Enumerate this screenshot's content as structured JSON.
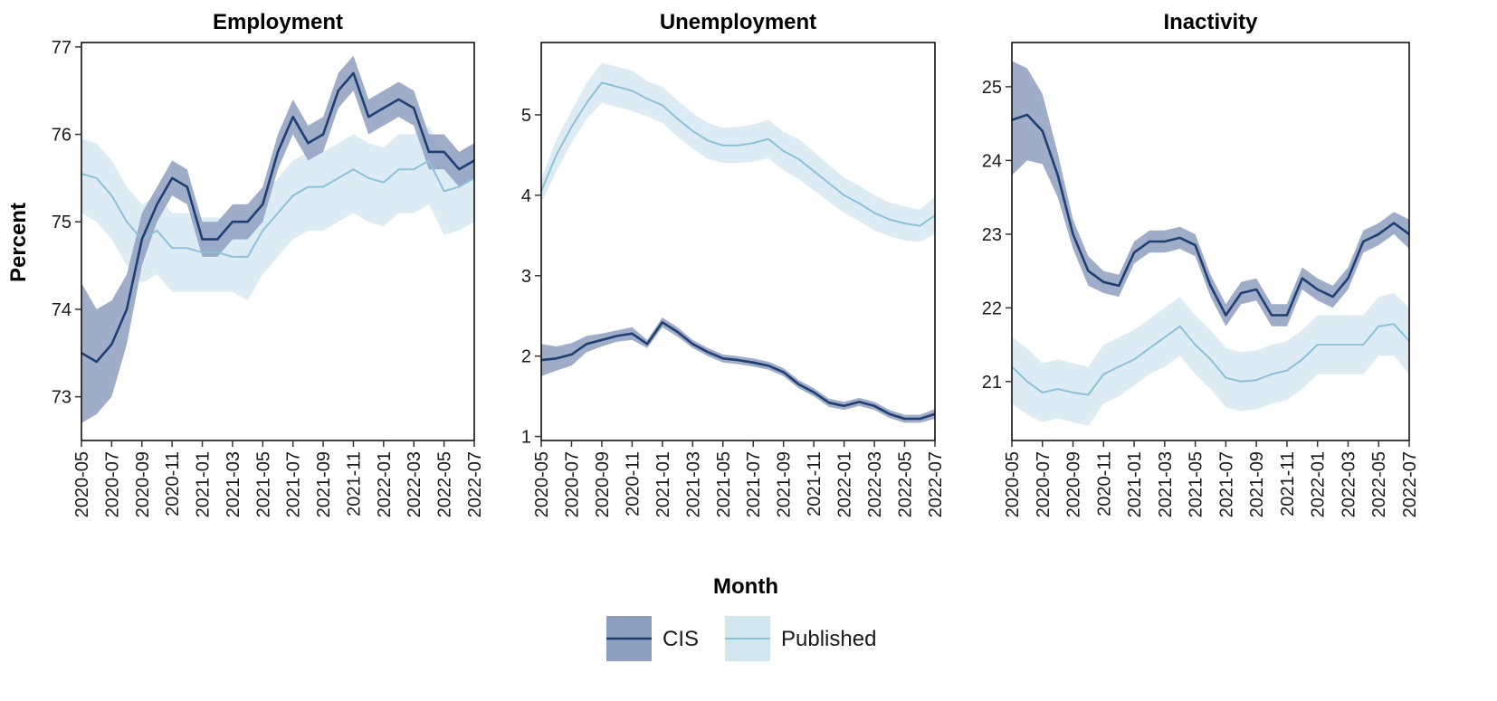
{
  "chart_data": {
    "type": "line",
    "xlabel": "Month",
    "ylabel": "Percent",
    "x": [
      "2020-05",
      "2020-06",
      "2020-07",
      "2020-08",
      "2020-09",
      "2020-10",
      "2020-11",
      "2020-12",
      "2021-01",
      "2021-02",
      "2021-03",
      "2021-04",
      "2021-05",
      "2021-06",
      "2021-07",
      "2021-08",
      "2021-09",
      "2021-10",
      "2021-11",
      "2021-12",
      "2022-01",
      "2022-02",
      "2022-03",
      "2022-04",
      "2022-05",
      "2022-06",
      "2022-07"
    ],
    "x_tick_labels": [
      "2020-05",
      "2020-07",
      "2020-09",
      "2020-11",
      "2021-01",
      "2021-03",
      "2021-05",
      "2021-07",
      "2021-09",
      "2021-11",
      "2022-01",
      "2022-03",
      "2022-05",
      "2022-07"
    ],
    "legend": {
      "placement": "bottom",
      "entries": [
        {
          "name": "CIS",
          "line_color": "#1f3f73",
          "band_color": "#8e9fbf"
        },
        {
          "name": "Published",
          "line_color": "#8dc1d6",
          "band_color": "#d2e6f0"
        }
      ]
    },
    "panels": [
      {
        "title": "Employment",
        "ylim": [
          72.5,
          77.05
        ],
        "yticks": [
          73,
          74,
          75,
          76,
          77
        ],
        "series": [
          {
            "name": "CIS",
            "values": [
              73.5,
              73.4,
              73.6,
              74.0,
              74.8,
              75.2,
              75.5,
              75.4,
              74.8,
              74.8,
              75.0,
              75.0,
              75.2,
              75.8,
              76.2,
              75.9,
              76.0,
              76.5,
              76.7,
              76.2,
              76.3,
              76.4,
              76.3,
              75.8,
              75.8,
              75.6,
              75.7
            ],
            "lower": [
              72.7,
              72.8,
              73.0,
              73.6,
              74.5,
              75.0,
              75.3,
              75.2,
              74.6,
              74.6,
              74.8,
              74.8,
              75.0,
              75.6,
              76.0,
              75.7,
              75.8,
              76.3,
              76.5,
              76.0,
              76.1,
              76.2,
              76.1,
              75.6,
              75.6,
              75.4,
              75.5
            ],
            "upper": [
              74.3,
              74.0,
              74.1,
              74.4,
              75.1,
              75.4,
              75.7,
              75.6,
              75.0,
              75.0,
              75.2,
              75.2,
              75.4,
              76.0,
              76.4,
              76.1,
              76.2,
              76.7,
              76.9,
              76.4,
              76.5,
              76.6,
              76.5,
              76.0,
              76.0,
              75.8,
              75.9
            ]
          },
          {
            "name": "Published",
            "values": [
              75.55,
              75.5,
              75.3,
              75.0,
              74.8,
              74.9,
              74.7,
              74.7,
              74.65,
              74.65,
              74.6,
              74.6,
              74.9,
              75.1,
              75.3,
              75.4,
              75.4,
              75.5,
              75.6,
              75.5,
              75.45,
              75.6,
              75.6,
              75.7,
              75.35,
              75.4,
              75.5
            ],
            "lower": [
              75.1,
              75.0,
              74.8,
              74.5,
              74.3,
              74.4,
              74.2,
              74.2,
              74.2,
              74.2,
              74.2,
              74.1,
              74.4,
              74.6,
              74.8,
              74.9,
              74.9,
              75.0,
              75.1,
              75.0,
              74.95,
              75.1,
              75.1,
              75.2,
              74.85,
              74.9,
              75.0
            ],
            "upper": [
              75.95,
              75.9,
              75.7,
              75.4,
              75.2,
              75.3,
              75.1,
              75.1,
              75.05,
              75.05,
              75.0,
              75.0,
              75.3,
              75.5,
              75.7,
              75.8,
              75.8,
              75.9,
              76.0,
              75.9,
              75.85,
              76.0,
              76.0,
              76.1,
              75.75,
              75.8,
              75.9
            ]
          }
        ]
      },
      {
        "title": "Unemployment",
        "ylim": [
          0.95,
          5.9
        ],
        "yticks": [
          1,
          2,
          3,
          4,
          5
        ],
        "series": [
          {
            "name": "CIS",
            "values": [
              1.95,
              1.97,
              2.02,
              2.15,
              2.2,
              2.25,
              2.28,
              2.15,
              2.42,
              2.3,
              2.15,
              2.05,
              1.97,
              1.95,
              1.92,
              1.88,
              1.8,
              1.65,
              1.55,
              1.42,
              1.38,
              1.43,
              1.38,
              1.28,
              1.22,
              1.22,
              1.28
            ],
            "lower": [
              1.75,
              1.82,
              1.88,
              2.05,
              2.12,
              2.18,
              2.2,
              2.1,
              2.36,
              2.24,
              2.1,
              2.0,
              1.92,
              1.9,
              1.87,
              1.83,
              1.75,
              1.6,
              1.5,
              1.37,
              1.33,
              1.38,
              1.33,
              1.23,
              1.17,
              1.17,
              1.22
            ],
            "upper": [
              2.15,
              2.12,
              2.16,
              2.25,
              2.28,
              2.32,
              2.36,
              2.2,
              2.48,
              2.36,
              2.2,
              2.1,
              2.02,
              2.0,
              1.97,
              1.93,
              1.85,
              1.7,
              1.6,
              1.47,
              1.43,
              1.48,
              1.43,
              1.33,
              1.27,
              1.27,
              1.34
            ]
          },
          {
            "name": "Published",
            "values": [
              4.05,
              4.5,
              4.85,
              5.15,
              5.4,
              5.35,
              5.3,
              5.2,
              5.12,
              4.95,
              4.8,
              4.68,
              4.62,
              4.62,
              4.65,
              4.7,
              4.55,
              4.45,
              4.3,
              4.15,
              4.0,
              3.9,
              3.78,
              3.7,
              3.65,
              3.62,
              3.75
            ],
            "lower": [
              3.9,
              4.3,
              4.65,
              4.95,
              5.15,
              5.1,
              5.05,
              4.98,
              4.9,
              4.73,
              4.58,
              4.45,
              4.4,
              4.4,
              4.42,
              4.46,
              4.31,
              4.2,
              4.06,
              3.92,
              3.78,
              3.68,
              3.56,
              3.49,
              3.44,
              3.42,
              3.52
            ],
            "upper": [
              4.2,
              4.7,
              5.05,
              5.4,
              5.65,
              5.6,
              5.55,
              5.42,
              5.35,
              5.18,
              5.02,
              4.9,
              4.84,
              4.85,
              4.88,
              4.94,
              4.79,
              4.7,
              4.54,
              4.38,
              4.22,
              4.12,
              4.0,
              3.91,
              3.86,
              3.82,
              3.98
            ]
          }
        ]
      },
      {
        "title": "Inactivity",
        "ylim": [
          20.2,
          25.6
        ],
        "yticks": [
          21,
          22,
          23,
          24,
          25
        ],
        "series": [
          {
            "name": "CIS",
            "values": [
              24.55,
              24.62,
              24.4,
              23.8,
              23.0,
              22.5,
              22.35,
              22.3,
              22.75,
              22.9,
              22.9,
              22.95,
              22.85,
              22.3,
              21.9,
              22.2,
              22.25,
              21.9,
              21.9,
              22.4,
              22.25,
              22.15,
              22.4,
              22.9,
              23.0,
              23.15,
              23.0
            ],
            "lower": [
              23.8,
              24.0,
              23.95,
              23.5,
              22.8,
              22.3,
              22.2,
              22.15,
              22.6,
              22.75,
              22.75,
              22.8,
              22.7,
              22.15,
              21.75,
              22.05,
              22.1,
              21.75,
              21.75,
              22.25,
              22.1,
              22.0,
              22.25,
              22.75,
              22.85,
              23.0,
              22.8
            ],
            "upper": [
              25.35,
              25.25,
              24.9,
              24.1,
              23.2,
              22.7,
              22.5,
              22.45,
              22.9,
              23.05,
              23.05,
              23.1,
              23.0,
              22.45,
              22.05,
              22.35,
              22.4,
              22.05,
              22.05,
              22.55,
              22.4,
              22.3,
              22.55,
              23.05,
              23.15,
              23.3,
              23.2
            ]
          },
          {
            "name": "Published",
            "values": [
              21.2,
              21.0,
              20.85,
              20.9,
              20.85,
              20.82,
              21.1,
              21.2,
              21.3,
              21.45,
              21.6,
              21.75,
              21.5,
              21.3,
              21.05,
              21.0,
              21.02,
              21.1,
              21.15,
              21.3,
              21.5,
              21.5,
              21.5,
              21.5,
              21.75,
              21.78,
              21.55
            ],
            "lower": [
              20.7,
              20.55,
              20.45,
              20.5,
              20.45,
              20.4,
              20.7,
              20.8,
              20.95,
              21.1,
              21.2,
              21.35,
              21.1,
              20.9,
              20.65,
              20.6,
              20.62,
              20.7,
              20.75,
              20.9,
              21.1,
              21.1,
              21.1,
              21.1,
              21.35,
              21.35,
              21.1
            ],
            "upper": [
              21.6,
              21.45,
              21.25,
              21.3,
              21.25,
              21.2,
              21.5,
              21.6,
              21.7,
              21.85,
              22.0,
              22.15,
              21.9,
              21.7,
              21.45,
              21.4,
              21.42,
              21.5,
              21.55,
              21.7,
              21.9,
              21.9,
              21.9,
              21.9,
              22.15,
              22.2,
              22.0
            ]
          }
        ]
      }
    ]
  }
}
